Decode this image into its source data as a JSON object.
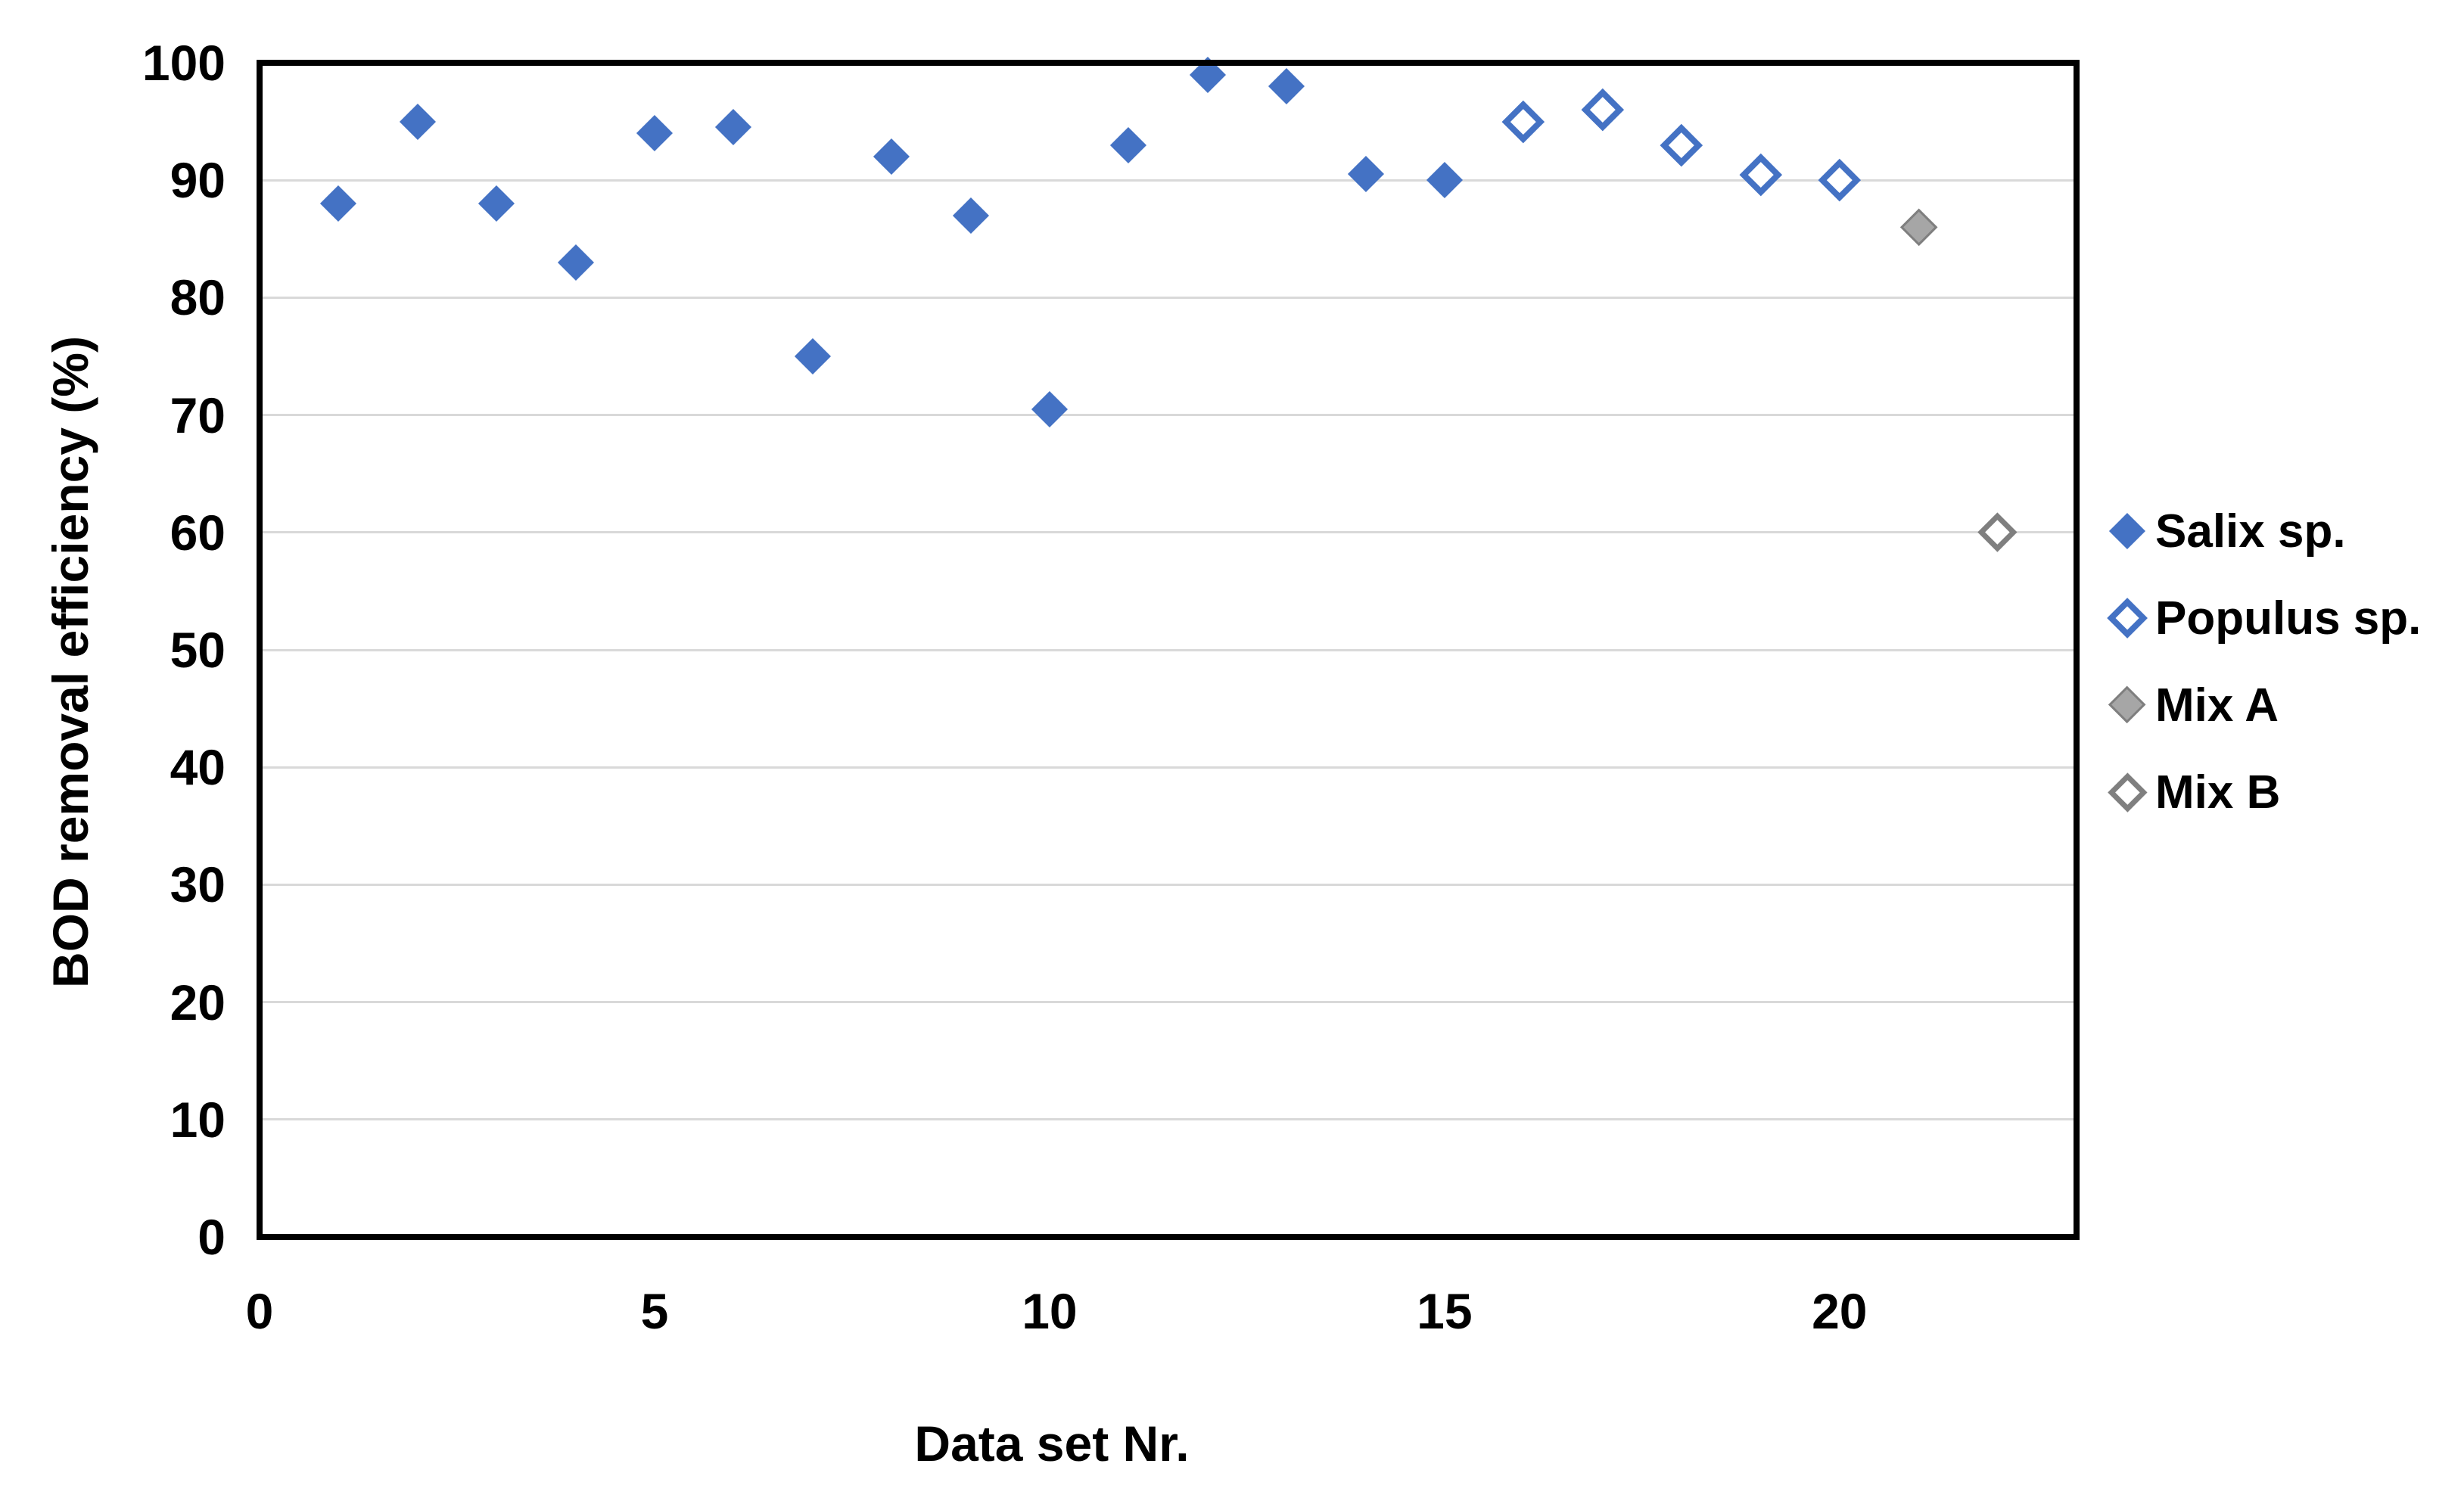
{
  "chart_data": {
    "type": "scatter",
    "xlabel": "Data set Nr.",
    "ylabel": "BOD removal efficiency (%)",
    "xlim": [
      0,
      23
    ],
    "ylim": [
      0,
      100
    ],
    "x_ticks": [
      0,
      5,
      10,
      15,
      20
    ],
    "y_ticks": [
      0,
      10,
      20,
      30,
      40,
      50,
      60,
      70,
      80,
      90,
      100
    ],
    "grid": "horizontal",
    "legend_position": "right",
    "series": [
      {
        "name": "Salix sp.",
        "marker": "filled-diamond",
        "fill": "#4472C4",
        "stroke": "#3A62A8",
        "stroke_px": 0,
        "marker_px": 48,
        "points": [
          [
            1,
            88
          ],
          [
            2,
            95
          ],
          [
            3,
            88
          ],
          [
            4,
            83
          ],
          [
            5,
            94
          ],
          [
            6,
            94.5
          ],
          [
            7,
            75
          ],
          [
            8,
            92
          ],
          [
            9,
            87
          ],
          [
            10,
            70.5
          ],
          [
            11,
            93
          ],
          [
            12,
            99
          ],
          [
            13,
            98
          ],
          [
            14,
            90.5
          ],
          [
            15,
            90
          ]
        ]
      },
      {
        "name": "Populus sp.",
        "marker": "open-diamond",
        "fill": "#FFFFFF",
        "stroke": "#4472C4",
        "stroke_px": 8,
        "marker_px": 56,
        "points": [
          [
            16,
            95
          ],
          [
            17,
            96
          ],
          [
            18,
            93
          ],
          [
            19,
            90.5
          ],
          [
            20,
            90
          ]
        ]
      },
      {
        "name": "Mix A",
        "marker": "filled-diamond",
        "fill": "#A6A6A6",
        "stroke": "#7F7F7F",
        "stroke_px": 3,
        "marker_px": 50,
        "points": [
          [
            21,
            86
          ]
        ]
      },
      {
        "name": "Mix B",
        "marker": "open-diamond",
        "fill": "#FFFFFF",
        "stroke": "#7F7F7F",
        "stroke_px": 7,
        "marker_px": 52,
        "points": [
          [
            22,
            60
          ]
        ]
      }
    ]
  },
  "colors": {
    "background": "#FFFFFF",
    "gridline": "#D9D9D9",
    "axis_line": "#000000",
    "text": "#000000"
  }
}
